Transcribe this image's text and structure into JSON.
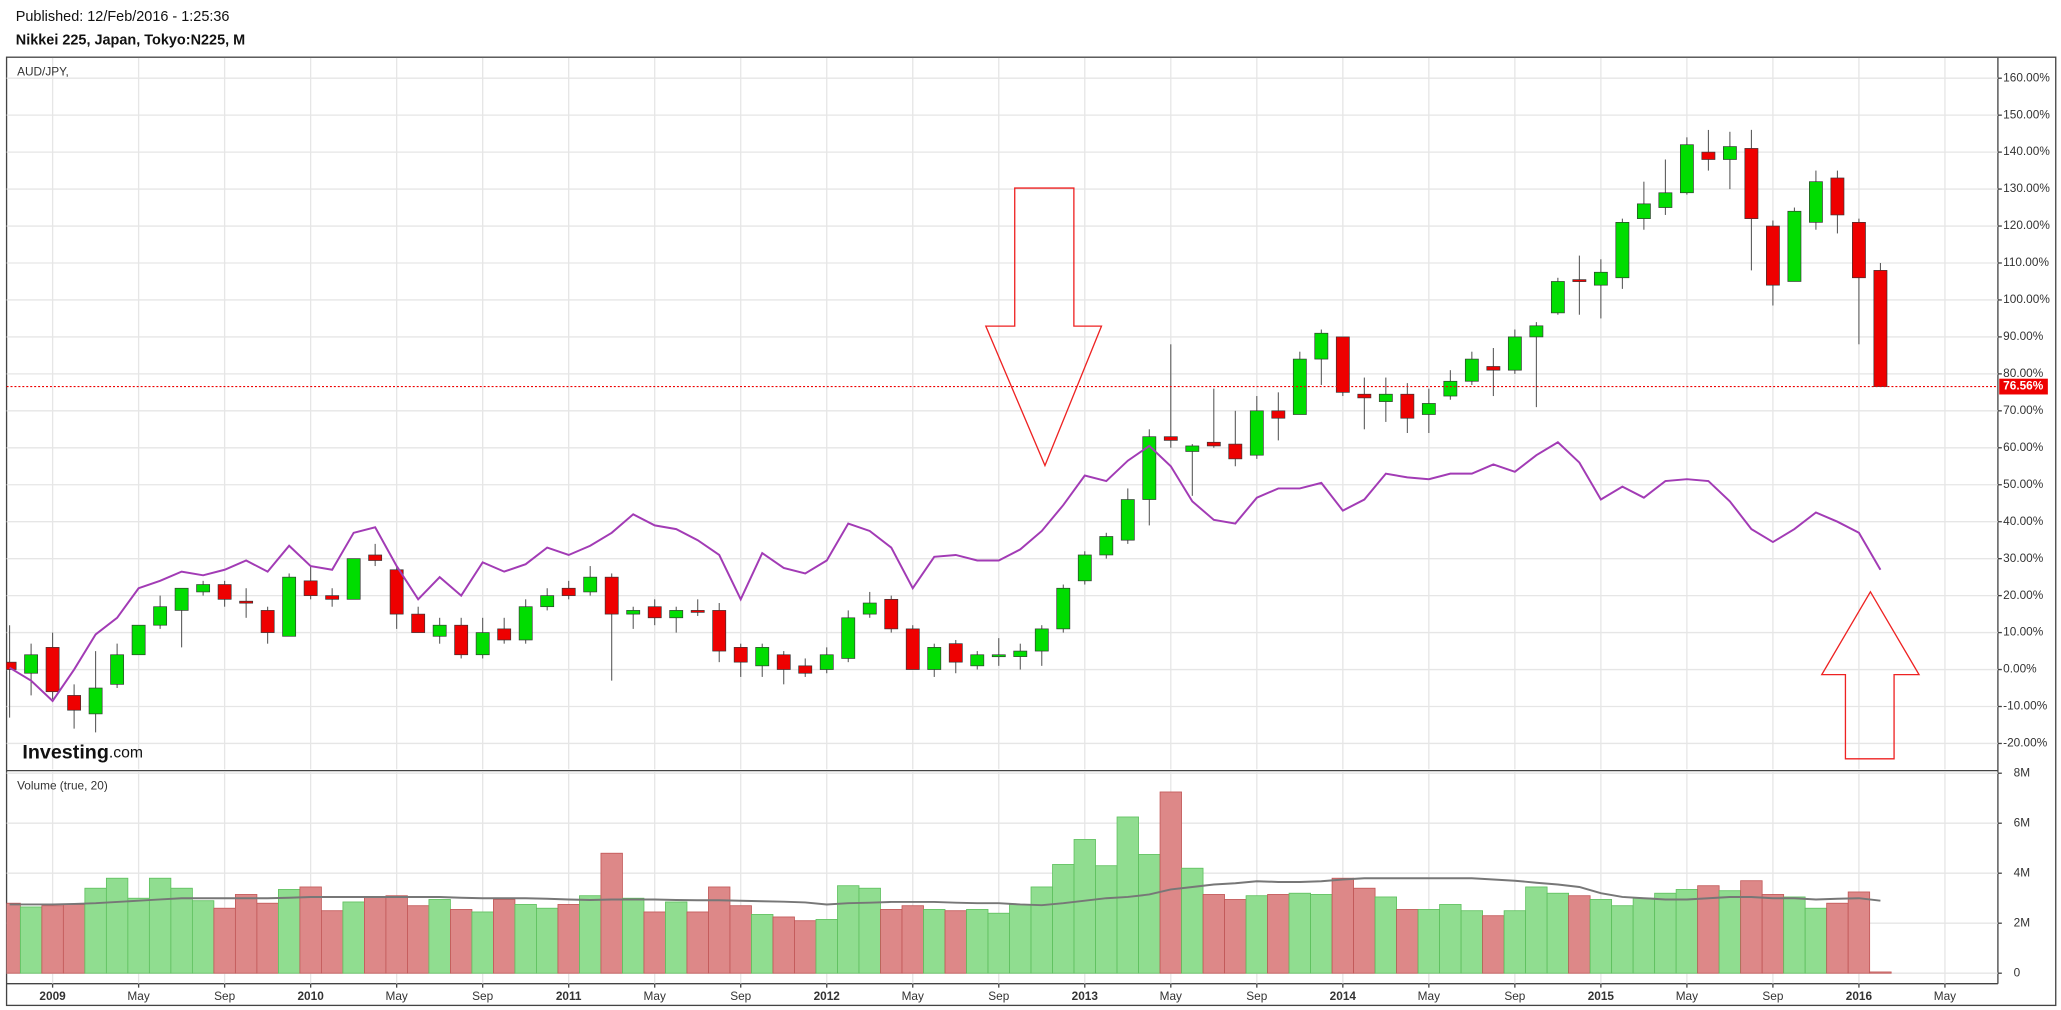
{
  "header": {
    "published": "Published: 12/Feb/2016 - 1:25:36",
    "title": "Nikkei 225, Japan, Tokyo:N225, M",
    "logo": {
      "brand": "Investing",
      "suffix": ".com"
    }
  },
  "chart_data": [
    {
      "type": "candlestick",
      "up_color": "#00dd00",
      "down_color": "#ee0000",
      "grid": true,
      "open": [
        2,
        -1,
        6,
        -7,
        -12,
        -4,
        4,
        12,
        16,
        21,
        23,
        18.5,
        16,
        9,
        24,
        20,
        19,
        31,
        27,
        15,
        9,
        12,
        4,
        11,
        8,
        17,
        22,
        21,
        25,
        15,
        17,
        14,
        16,
        16,
        6,
        1,
        4,
        1,
        0,
        3,
        15,
        19,
        11,
        0,
        7,
        1,
        3.5,
        3.5,
        5,
        11,
        24,
        31,
        35,
        46,
        63,
        59,
        61.5,
        61,
        58,
        70,
        69,
        84,
        90,
        74.5,
        72.5,
        74.5,
        69,
        74,
        78,
        82,
        81,
        90,
        96.5,
        105.5,
        104,
        106,
        122,
        125,
        129,
        140,
        138,
        141,
        120,
        105,
        121,
        133,
        121,
        108,
        null,
        null,
        null
      ],
      "high": [
        12,
        7,
        10,
        -4,
        5,
        7,
        12,
        20,
        22,
        24,
        24,
        22,
        17,
        26,
        28,
        22,
        30,
        34,
        28,
        17,
        14,
        14,
        14,
        14,
        19,
        22,
        24,
        28,
        26,
        17,
        19,
        17,
        19,
        18,
        7,
        7,
        5,
        3,
        6,
        16,
        21,
        20,
        12,
        7,
        8,
        5,
        8.5,
        7,
        12,
        23,
        32,
        37,
        49,
        65,
        88,
        61,
        76,
        70,
        74,
        75,
        86,
        92,
        90,
        79,
        79,
        77.5,
        76,
        81,
        86,
        87,
        92,
        94,
        106,
        112,
        111,
        122,
        132,
        138,
        144,
        146,
        145.5,
        146,
        121.5,
        125,
        135,
        135,
        122,
        110,
        null,
        null,
        null
      ],
      "low": [
        -13,
        -7,
        -8,
        -16,
        -17,
        -5,
        4,
        11,
        6,
        20,
        17,
        14,
        7,
        9,
        19,
        17,
        19,
        28,
        11,
        10,
        7,
        3,
        3,
        7,
        7,
        16,
        19,
        20,
        -3,
        11,
        12,
        10,
        14.5,
        2,
        -2,
        -2,
        -4,
        -2,
        -1,
        2,
        14,
        10,
        0,
        -2,
        -1,
        0,
        1,
        0,
        1,
        10,
        23,
        30,
        34,
        39,
        60,
        47,
        60,
        55,
        57,
        62,
        69,
        77,
        74,
        65,
        67,
        64,
        64,
        73,
        77,
        74,
        80,
        71,
        96,
        96,
        95,
        103,
        119,
        123,
        128.5,
        135,
        130,
        108,
        98.5,
        105,
        119,
        118,
        88,
        76.56,
        null,
        null,
        null
      ],
      "close": [
        0,
        4,
        -6,
        -11,
        -5,
        4,
        12,
        17,
        22,
        23,
        19,
        18,
        10,
        25,
        20,
        19,
        30,
        29.5,
        15,
        10,
        12,
        4,
        10,
        8,
        17,
        20,
        20,
        25,
        15,
        16,
        14,
        16,
        15.5,
        5,
        2,
        6,
        0,
        -1,
        4,
        14,
        18,
        11,
        0,
        6,
        2,
        4,
        4,
        5,
        11,
        22,
        31,
        36,
        46,
        63,
        62,
        60.5,
        60.5,
        57,
        70,
        68,
        84,
        91,
        75,
        73.5,
        74.5,
        68,
        72,
        78,
        84,
        81,
        90,
        93,
        105,
        105,
        107.5,
        121,
        126,
        129,
        142,
        138,
        141.5,
        122,
        104,
        124,
        132,
        123,
        106,
        76.56,
        null,
        null,
        null
      ],
      "last_value_label": "76.56%",
      "last_color": "#ee0000",
      "overlay": {
        "name": "AUD/JPY,",
        "color": "#a23bb5",
        "values": [
          0.5,
          -3,
          -8.5,
          0,
          9.5,
          14,
          22,
          24,
          26.5,
          25.5,
          27,
          29.5,
          26.5,
          33.5,
          28,
          27,
          37,
          38.5,
          28,
          19,
          25,
          20,
          29,
          26.5,
          28.5,
          33,
          31,
          33.5,
          37,
          42,
          39,
          38,
          35,
          31,
          19,
          31.5,
          27.5,
          26,
          29.5,
          39.5,
          37.5,
          33,
          22,
          30.5,
          31,
          29.5,
          29.5,
          32.5,
          37.5,
          44.5,
          52.5,
          51,
          56.5,
          60.5,
          55,
          45.5,
          40.5,
          39.5,
          46.5,
          49,
          49,
          50.5,
          43,
          46,
          53,
          52,
          51.5,
          53,
          53,
          55.5,
          53.5,
          58,
          61.5,
          56,
          46,
          49.5,
          46.5,
          51,
          51.5,
          51,
          45.5,
          38,
          34.5,
          38,
          42.5,
          40,
          37,
          27,
          null,
          null,
          null
        ]
      },
      "ylim": [
        -27,
        165.5
      ],
      "yticks": [
        {
          "value": -20,
          "label": "-20.00%"
        },
        {
          "value": -10,
          "label": "-10.00%"
        },
        {
          "value": 0,
          "label": "0.00%"
        },
        {
          "value": 10,
          "label": "10.00%"
        },
        {
          "value": 20,
          "label": "20.00%"
        },
        {
          "value": 30,
          "label": "30.00%"
        },
        {
          "value": 40,
          "label": "40.00%"
        },
        {
          "value": 50,
          "label": "50.00%"
        },
        {
          "value": 60,
          "label": "60.00%"
        },
        {
          "value": 70,
          "label": "70.00%"
        },
        {
          "value": 80,
          "label": "80.00%"
        },
        {
          "value": 90,
          "label": "90.00%"
        },
        {
          "value": 100,
          "label": "100.00%"
        },
        {
          "value": 110,
          "label": "110.00%"
        },
        {
          "value": 120,
          "label": "120.00%"
        },
        {
          "value": 130,
          "label": "130.00%"
        },
        {
          "value": 140,
          "label": "140.00%"
        },
        {
          "value": 150,
          "label": "150.00%"
        },
        {
          "value": 160,
          "label": "160.00%"
        }
      ]
    },
    {
      "type": "bar",
      "title": "Volume (true, 20)",
      "grid": true,
      "up_color": "#90dd90",
      "down_color": "#dd8888",
      "categories": [
        null,
        null,
        "2009",
        null,
        null,
        null,
        "May",
        null,
        null,
        null,
        "Sep",
        null,
        null,
        null,
        "2010",
        null,
        null,
        null,
        "May",
        null,
        null,
        null,
        "Sep",
        null,
        null,
        null,
        "2011",
        null,
        null,
        null,
        "May",
        null,
        null,
        null,
        "Sep",
        null,
        null,
        null,
        "2012",
        null,
        null,
        null,
        "May",
        null,
        null,
        null,
        "Sep",
        null,
        null,
        null,
        "2013",
        null,
        null,
        null,
        "May",
        null,
        null,
        null,
        "Sep",
        null,
        null,
        null,
        "2014",
        null,
        null,
        null,
        "May",
        null,
        null,
        null,
        "Sep",
        null,
        null,
        null,
        "2015",
        null,
        null,
        null,
        "May",
        null,
        null,
        null,
        "Sep",
        null,
        null,
        null,
        "2016",
        null,
        null,
        null,
        "May"
      ],
      "values": [
        2.8,
        2.65,
        2.7,
        2.75,
        3.4,
        3.8,
        3.0,
        3.8,
        3.4,
        2.9,
        2.6,
        3.15,
        2.8,
        3.35,
        3.45,
        2.5,
        2.85,
        3.05,
        3.1,
        2.7,
        2.95,
        2.55,
        2.45,
        2.95,
        2.75,
        2.6,
        2.75,
        3.1,
        4.8,
        3.0,
        2.45,
        2.85,
        2.45,
        3.45,
        2.7,
        2.35,
        2.25,
        2.1,
        2.15,
        3.5,
        3.4,
        2.55,
        2.7,
        2.55,
        2.5,
        2.55,
        2.4,
        2.75,
        3.45,
        4.35,
        5.35,
        4.3,
        6.25,
        4.75,
        7.25,
        4.2,
        3.15,
        2.95,
        3.1,
        3.15,
        3.2,
        3.15,
        3.8,
        3.4,
        3.05,
        2.55,
        2.55,
        2.75,
        2.5,
        2.3,
        2.5,
        3.45,
        3.2,
        3.1,
        2.95,
        2.7,
        3.0,
        3.2,
        3.35,
        3.5,
        3.3,
        3.7,
        3.15,
        3.05,
        2.6,
        2.8,
        3.25,
        0.05,
        null,
        null,
        null
      ],
      "ma": {
        "color": "#777777",
        "values": [
          2.75,
          2.75,
          2.75,
          2.77,
          2.8,
          2.85,
          2.9,
          2.95,
          3.0,
          3.0,
          3.0,
          3.0,
          3.0,
          3.02,
          3.05,
          3.05,
          3.05,
          3.05,
          3.05,
          3.05,
          3.05,
          3.02,
          3.0,
          3.0,
          3.0,
          2.98,
          2.95,
          2.93,
          2.95,
          2.95,
          2.95,
          2.93,
          2.92,
          2.92,
          2.9,
          2.88,
          2.86,
          2.83,
          2.75,
          2.8,
          2.82,
          2.85,
          2.85,
          2.85,
          2.82,
          2.8,
          2.8,
          2.75,
          2.72,
          2.8,
          2.9,
          3.0,
          3.05,
          3.15,
          3.35,
          3.45,
          3.55,
          3.6,
          3.68,
          3.65,
          3.65,
          3.68,
          3.75,
          3.8,
          3.8,
          3.8,
          3.8,
          3.8,
          3.8,
          3.75,
          3.7,
          3.62,
          3.55,
          3.45,
          3.2,
          3.05,
          3.0,
          2.95,
          2.95,
          3.0,
          3.05,
          3.05,
          3.0,
          3.0,
          2.95,
          2.98,
          3.0,
          2.9,
          null,
          null,
          null
        ]
      },
      "ylim": [
        -0.42,
        8.05
      ],
      "yticks": [
        0,
        {
          "value": 2,
          "label": "2M"
        },
        {
          "value": 4,
          "label": "4M"
        },
        {
          "value": 6,
          "label": "6M"
        },
        {
          "value": 8,
          "label": "8M"
        }
      ]
    }
  ]
}
